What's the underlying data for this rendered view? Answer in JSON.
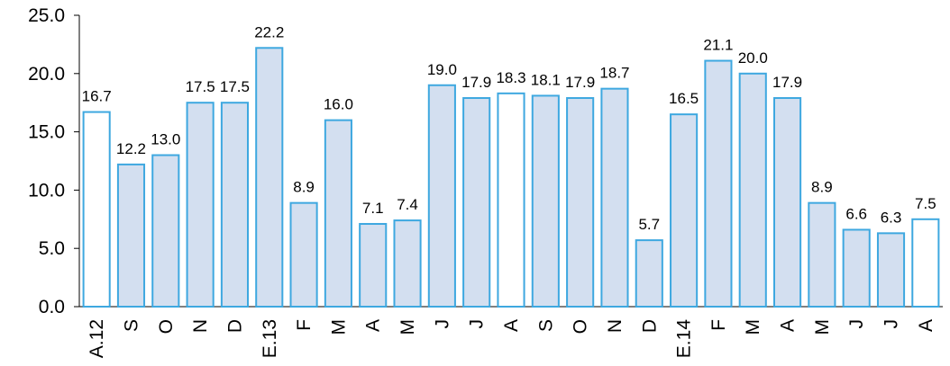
{
  "chart_data": {
    "type": "bar",
    "title": "",
    "xlabel": "",
    "ylabel": "",
    "ylim": [
      0,
      25
    ],
    "yticks": [
      "0.0",
      "5.0",
      "10.0",
      "15.0",
      "20.0",
      "25.0"
    ],
    "grid": false,
    "legend": "none",
    "categories": [
      "A.12",
      "S",
      "O",
      "N",
      "D",
      "E.13",
      "F",
      "M",
      "A",
      "M",
      "J",
      "J",
      "A",
      "S",
      "O",
      "N",
      "D",
      "E.14",
      "F",
      "M",
      "A",
      "M",
      "J",
      "J",
      "A"
    ],
    "values": [
      16.7,
      12.2,
      13.0,
      17.5,
      17.5,
      22.2,
      8.9,
      16.0,
      7.1,
      7.4,
      19.0,
      17.9,
      18.3,
      18.1,
      17.9,
      18.7,
      5.7,
      16.5,
      21.1,
      20.0,
      17.9,
      8.9,
      6.6,
      6.3,
      7.5
    ],
    "value_labels": [
      "16.7",
      "12.2",
      "13.0",
      "17.5",
      "17.5",
      "22.2",
      "8.9",
      "16.0",
      "7.1",
      "7.4",
      "19.0",
      "17.9",
      "18.3",
      "18.1",
      "17.9",
      "18.7",
      "5.7",
      "16.5",
      "21.1",
      "20.0",
      "17.9",
      "8.9",
      "6.6",
      "6.3",
      "7.5"
    ],
    "highlighted": [
      true,
      false,
      false,
      false,
      false,
      false,
      false,
      false,
      false,
      false,
      false,
      false,
      true,
      false,
      false,
      false,
      false,
      false,
      false,
      false,
      false,
      false,
      false,
      false,
      true
    ],
    "colors": {
      "bar_fill": "#d3dff0",
      "bar_fill_highlight": "#ffffff",
      "bar_stroke": "#3ea8e0",
      "axis": "#000000",
      "text": "#000000"
    }
  }
}
